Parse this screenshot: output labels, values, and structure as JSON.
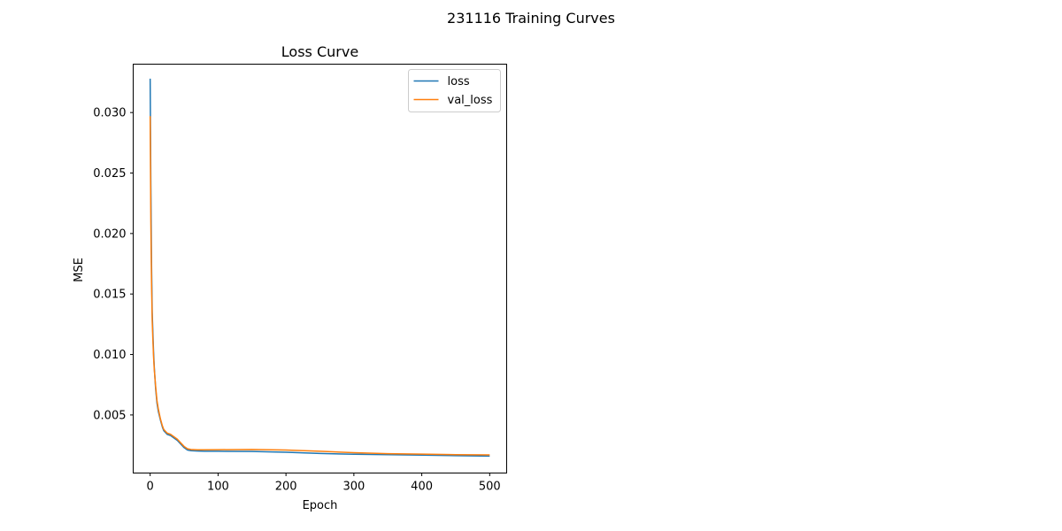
{
  "figure": {
    "suptitle": "231116 Training Curves"
  },
  "chart_data": {
    "type": "line",
    "title": "Loss Curve",
    "xlabel": "Epoch",
    "ylabel": "MSE",
    "xlim": [
      -25,
      525
    ],
    "ylim": [
      0.0002,
      0.034
    ],
    "xticks": [
      0,
      100,
      200,
      300,
      400,
      500
    ],
    "yticks": [
      0.005,
      0.01,
      0.015,
      0.02,
      0.025,
      0.03
    ],
    "ytick_labels": [
      "0.005",
      "0.010",
      "0.015",
      "0.020",
      "0.025",
      "0.030"
    ],
    "grid": false,
    "legend_position": "top-right",
    "series": [
      {
        "name": "loss",
        "color": "#1f77b4",
        "x": [
          0,
          1,
          2,
          3,
          4,
          5,
          6,
          8,
          10,
          12,
          15,
          18,
          20,
          25,
          30,
          35,
          40,
          45,
          50,
          55,
          60,
          70,
          80,
          100,
          150,
          200,
          250,
          300,
          350,
          400,
          450,
          500
        ],
        "y": [
          0.0328,
          0.024,
          0.0175,
          0.0135,
          0.0118,
          0.0102,
          0.009,
          0.0072,
          0.006,
          0.0053,
          0.0046,
          0.004,
          0.0037,
          0.0034,
          0.0033,
          0.0031,
          0.0029,
          0.0026,
          0.0023,
          0.0021,
          0.00205,
          0.00202,
          0.002,
          0.002,
          0.00198,
          0.00192,
          0.00182,
          0.00175,
          0.00172,
          0.00168,
          0.00164,
          0.0016
        ]
      },
      {
        "name": "val_loss",
        "color": "#ff7f0e",
        "x": [
          0,
          1,
          2,
          3,
          4,
          5,
          6,
          8,
          10,
          12,
          15,
          18,
          20,
          25,
          30,
          35,
          40,
          45,
          50,
          55,
          60,
          70,
          80,
          100,
          150,
          200,
          250,
          300,
          350,
          400,
          450,
          500
        ],
        "y": [
          0.0297,
          0.021,
          0.016,
          0.0128,
          0.0112,
          0.0098,
          0.0088,
          0.0074,
          0.0062,
          0.0055,
          0.0047,
          0.0041,
          0.0038,
          0.0035,
          0.0034,
          0.0032,
          0.003,
          0.0027,
          0.0024,
          0.0022,
          0.00215,
          0.00212,
          0.00212,
          0.00213,
          0.00215,
          0.0021,
          0.002,
          0.00188,
          0.0018,
          0.00176,
          0.00172,
          0.0017
        ]
      }
    ]
  }
}
